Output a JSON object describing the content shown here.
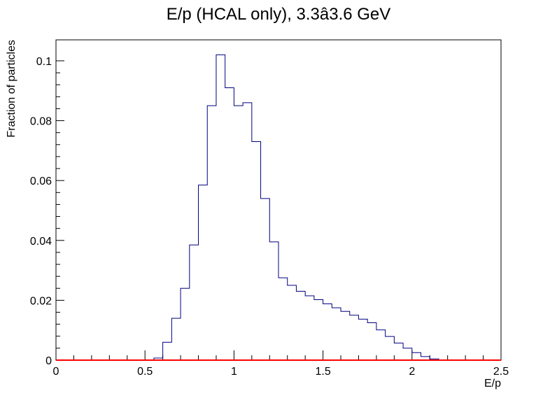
{
  "chart_data": {
    "type": "histogram",
    "title": "E/p (HCAL only), 3.3â3.6 GeV",
    "xlabel": "E/p",
    "ylabel": "Fraction of particles",
    "xlim": [
      0,
      2.5
    ],
    "ylim": [
      0,
      0.107
    ],
    "x_ticks": [
      0,
      0.5,
      1,
      1.5,
      2,
      2.5
    ],
    "x_tick_labels": [
      "0",
      "0.5",
      "1",
      "1.5",
      "2",
      "2.5"
    ],
    "y_ticks": [
      0,
      0.02,
      0.04,
      0.06,
      0.08,
      0.1
    ],
    "y_tick_labels": [
      "0",
      "0.02",
      "0.04",
      "0.06",
      "0.08",
      "0.1"
    ],
    "bin_width": 0.05,
    "series": [
      {
        "color": "#000080",
        "bin_edges_start": 0.55,
        "values": [
          0.0007,
          0.006,
          0.014,
          0.024,
          0.0385,
          0.0585,
          0.085,
          0.102,
          0.091,
          0.085,
          0.086,
          0.073,
          0.054,
          0.0395,
          0.0275,
          0.025,
          0.023,
          0.0215,
          0.0202,
          0.0188,
          0.0175,
          0.0163,
          0.015,
          0.0137,
          0.0125,
          0.0101,
          0.0079,
          0.0057,
          0.004,
          0.0025,
          0.0012,
          0.0004
        ]
      },
      {
        "color": "#ff0000",
        "values": [
          0
        ]
      }
    ]
  }
}
